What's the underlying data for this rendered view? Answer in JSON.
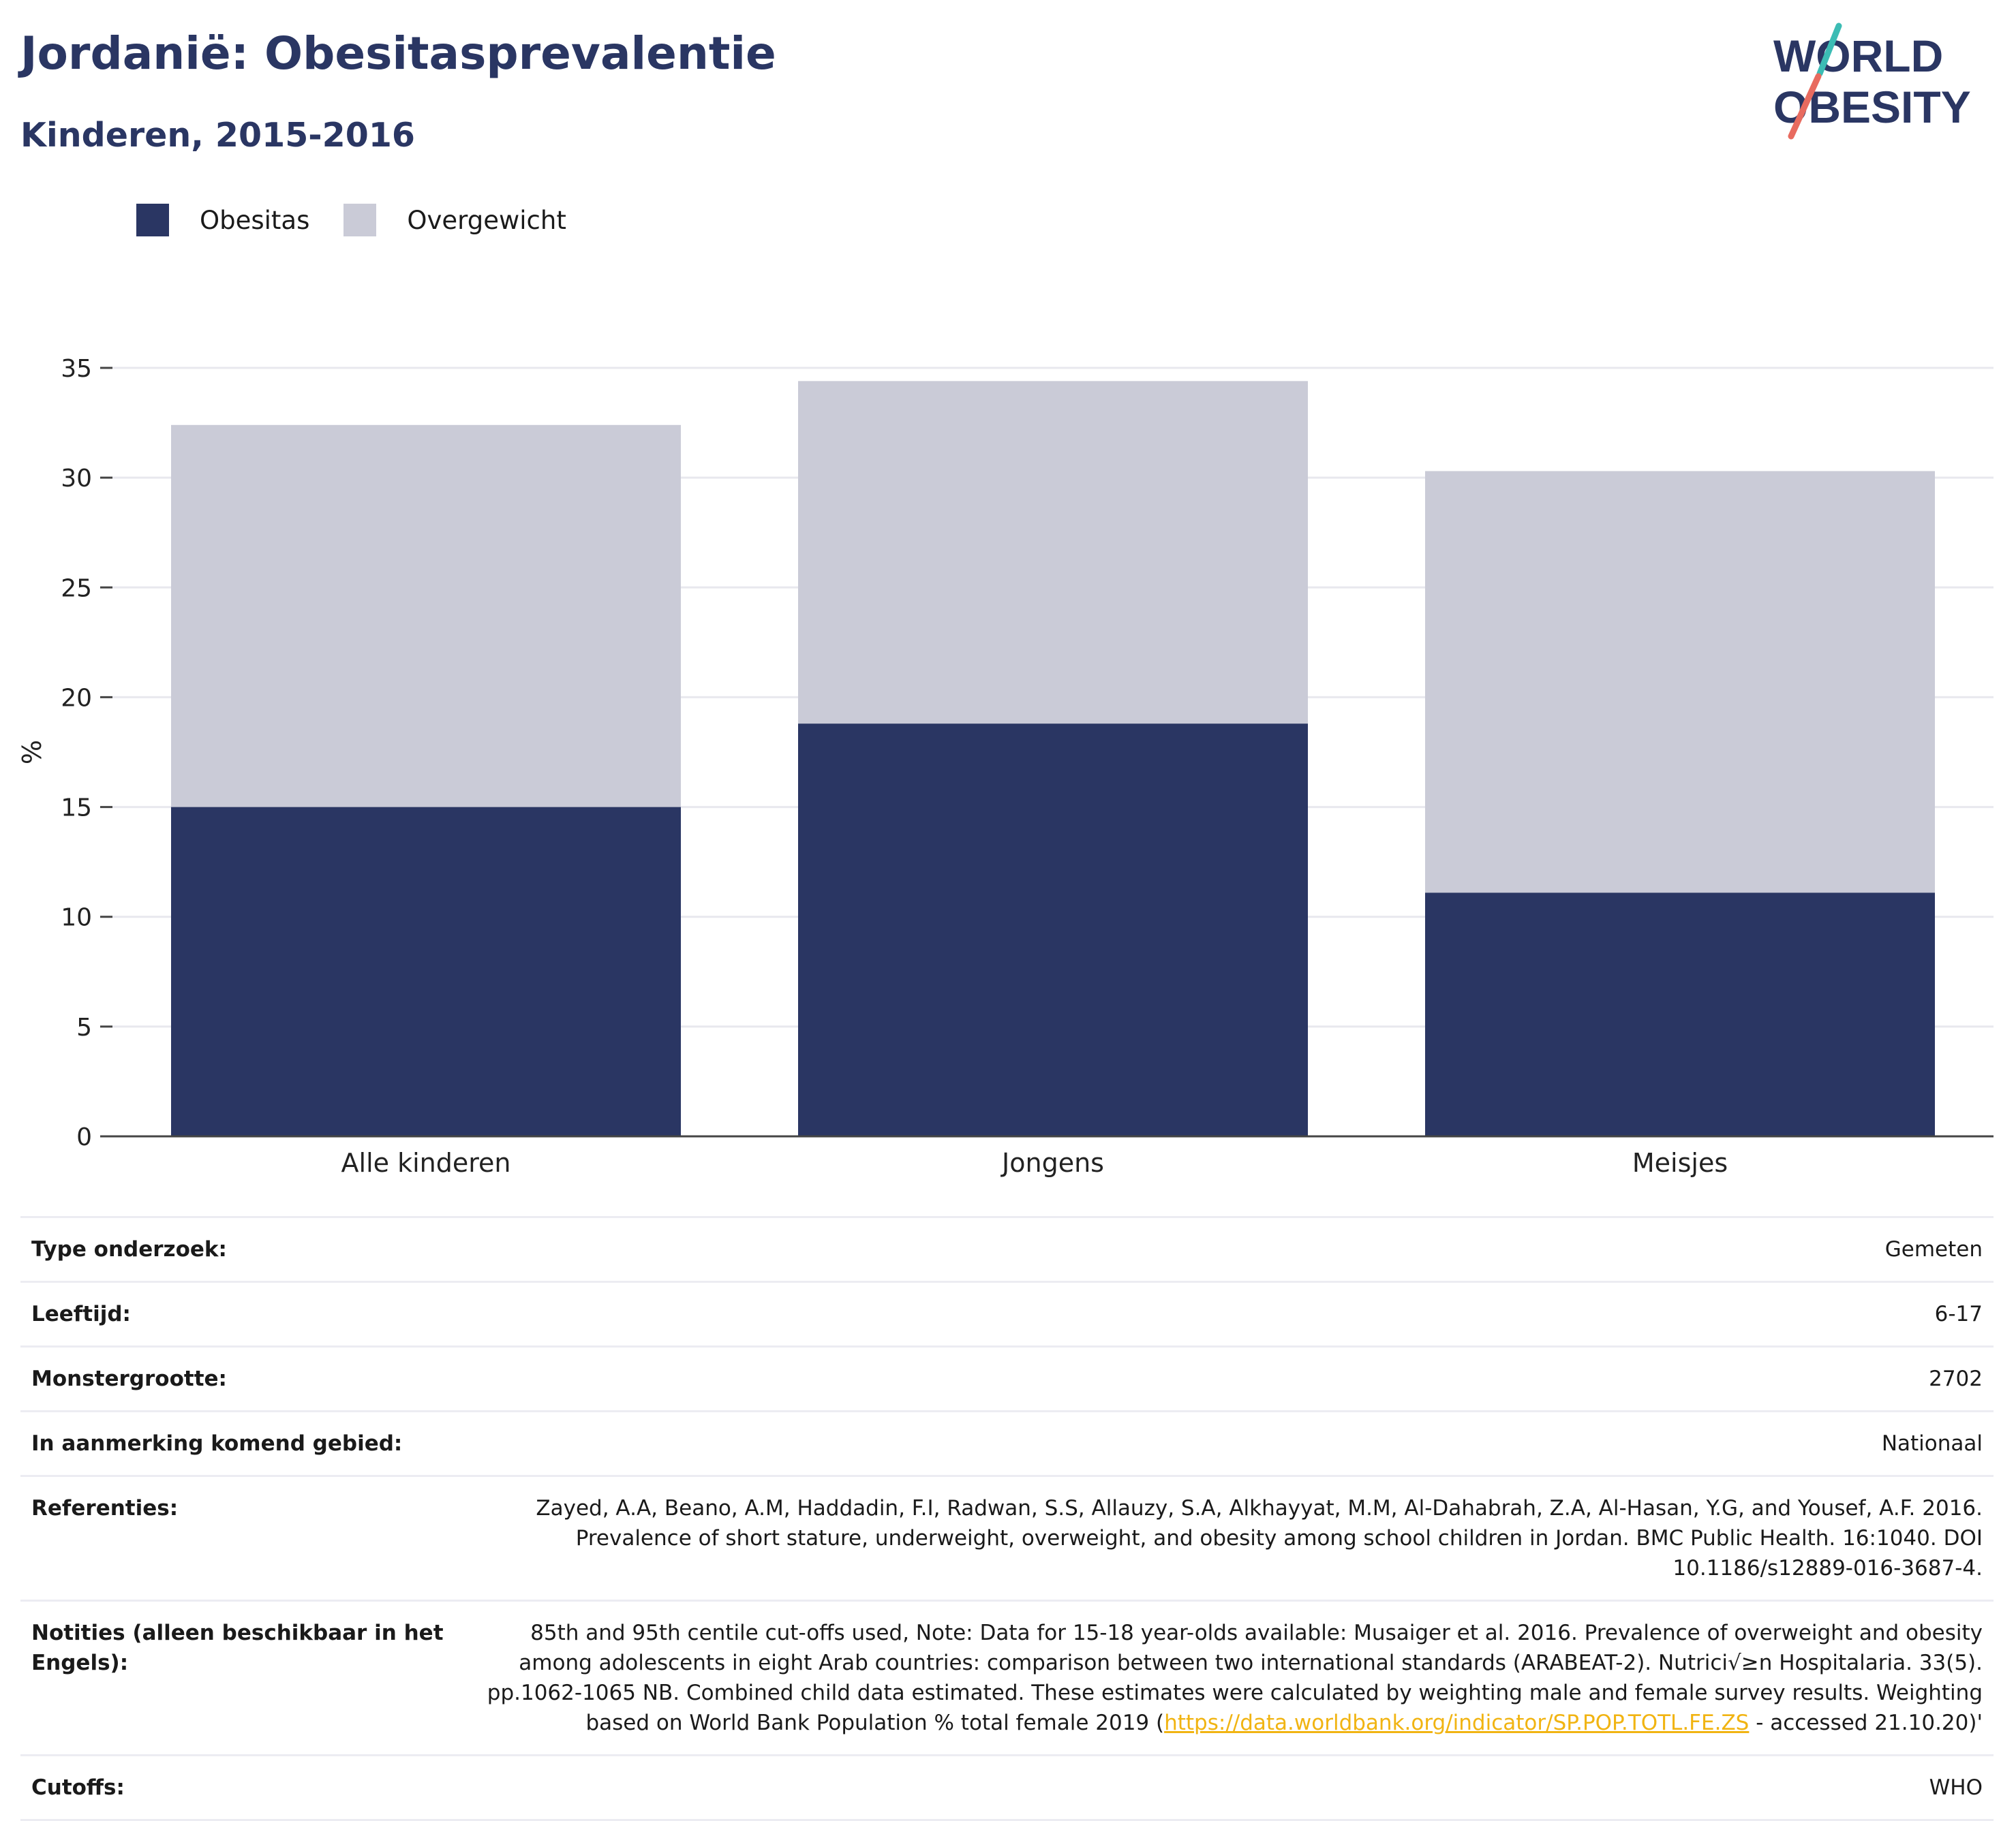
{
  "header": {
    "title": "Jordanië: Obesitasprevalentie",
    "subtitle": "Kinderen, 2015-2016"
  },
  "logo": {
    "line1": "WORLD",
    "line2": "OBESITY"
  },
  "legend": [
    {
      "label": "Obesitas",
      "color": "#2a3663"
    },
    {
      "label": "Overgewicht",
      "color": "#cacbd7"
    }
  ],
  "chart_data": {
    "type": "bar",
    "stacked": true,
    "categories": [
      "Alle kinderen",
      "Jongens",
      "Meisjes"
    ],
    "series": [
      {
        "name": "Obesitas",
        "values": [
          15.0,
          18.8,
          11.1
        ],
        "color": "#2a3663"
      },
      {
        "name": "Overgewicht",
        "values": [
          17.4,
          15.6,
          19.2
        ],
        "color": "#cacbd7"
      }
    ],
    "ylabel": "%",
    "ylim": [
      0,
      35
    ],
    "yticks": [
      0,
      5,
      10,
      15,
      20,
      25,
      30,
      35
    ],
    "grid": true,
    "legend_position": "top-left"
  },
  "info": {
    "type_label": "Type onderzoek:",
    "type_value": "Gemeten",
    "age_label": "Leeftijd:",
    "age_value": "6-17",
    "sample_label": "Monstergrootte:",
    "sample_value": "2702",
    "area_label": "In aanmerking komend gebied:",
    "area_value": "Nationaal",
    "ref_label": "Referenties:",
    "ref_value": "Zayed, A.A, Beano, A.M, Haddadin, F.I, Radwan, S.S, Allauzy, S.A, Alkhayyat, M.M, Al-Dahabrah, Z.A, Al-Hasan, Y.G, and Yousef, A.F. 2016. Prevalence of short stature, underweight, overweight, and obesity among school children in Jordan. BMC Public Health. 16:1040. DOI 10.1186/s12889-016-3687-4.",
    "notes_label": "Notities (alleen beschikbaar in het Engels):",
    "notes_value": "85th and 95th centile cut-offs used, Note: Data for 15-18 year-olds available: Musaiger et al. 2016. Prevalence of overweight and obesity among adolescents in eight Arab countries: comparison between two international standards (ARABEAT-2). Nutrici√≥n Hospitalaria. 33(5). pp.1062-1065 NB. Combined child data estimated. These estimates were calculated by weighting male and female survey results. Weighting based on World Bank Population % total female 2019 (",
    "notes_link": "https://data.worldbank.org/indicator/SP.POP.TOTL.FE.ZS",
    "notes_tail": " - accessed 21.10.20)'",
    "cutoffs_label": "Cutoffs:",
    "cutoffs_value": "WHO"
  }
}
